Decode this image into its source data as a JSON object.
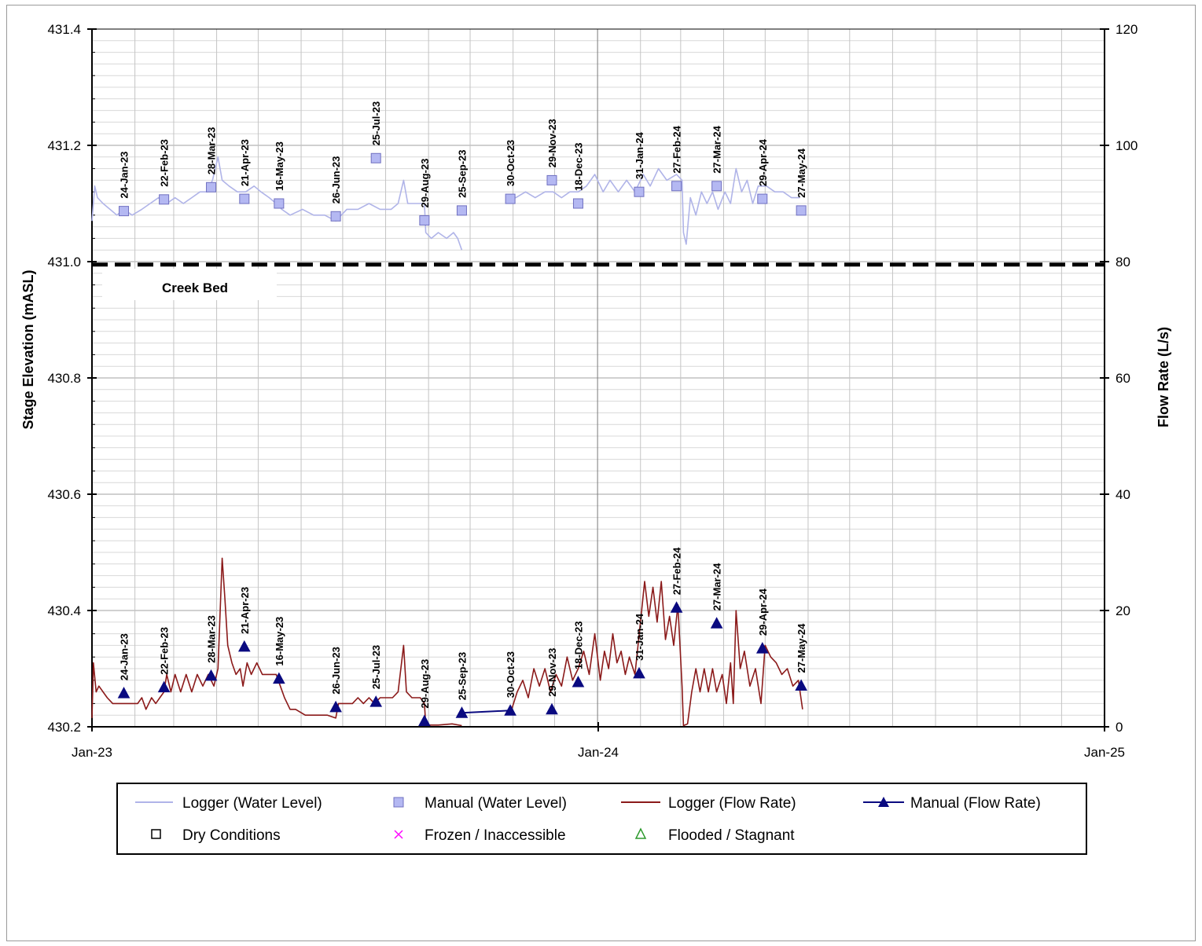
{
  "chart_data": {
    "type": "line",
    "ylabel_left": "Stage Elevation (mASL)",
    "ylabel_right": "Flow Rate (L/s)",
    "x_tick_labels": [
      "Jan-23",
      "Jan-24",
      "Jan-25"
    ],
    "xlim": [
      "2023-01-01",
      "2025-01-01"
    ],
    "ylim_left": [
      430.2,
      431.4
    ],
    "ylim_right": [
      0,
      120
    ],
    "y_left_ticks": [
      "430.2",
      "430.4",
      "430.6",
      "430.8",
      "431.0",
      "431.2",
      "431.4"
    ],
    "y_right_ticks": [
      "0",
      "20",
      "40",
      "60",
      "80",
      "100",
      "120"
    ],
    "creek_bed": {
      "label": "Creek Bed",
      "elevation": 430.995
    },
    "grid": true,
    "legend_position": "bottom",
    "legend": [
      {
        "label": "Logger (Water Level)",
        "key": "logger_wl"
      },
      {
        "label": "Manual (Water Level)",
        "key": "manual_wl"
      },
      {
        "label": "Logger (Flow  Rate)",
        "key": "logger_flow"
      },
      {
        "label": "Manual (Flow  Rate)",
        "key": "manual_flow"
      },
      {
        "label": "Dry Conditions",
        "key": "dry"
      },
      {
        "label": "Frozen / Inaccessible",
        "key": "frozen"
      },
      {
        "label": "Flooded / Stagnant",
        "key": "flooded"
      }
    ],
    "colors": {
      "logger_wl": "#b0b4e8",
      "manual_wl": "#b4b8f2",
      "manual_wl_edge": "#7070c0",
      "logger_flow": "#8b1a1a",
      "manual_flow": "#0a0a80",
      "frozen": "#ff00ff",
      "flooded": "#2e9a2e"
    },
    "manual_water_level": [
      {
        "date": "2023-01-24",
        "label": "24-Jan-23",
        "value": 431.087
      },
      {
        "date": "2023-02-22",
        "label": "22-Feb-23",
        "value": 431.107
      },
      {
        "date": "2023-03-28",
        "label": "28-Mar-23",
        "value": 431.128
      },
      {
        "date": "2023-04-21",
        "label": "21-Apr-23",
        "value": 431.108
      },
      {
        "date": "2023-05-16",
        "label": "16-May-23",
        "value": 431.1
      },
      {
        "date": "2023-06-26",
        "label": "26-Jun-23",
        "value": 431.078
      },
      {
        "date": "2023-07-25",
        "label": "25-Jul-23",
        "value": 431.178
      },
      {
        "date": "2023-08-29",
        "label": "29-Aug-23",
        "value": 431.071
      },
      {
        "date": "2023-09-25",
        "label": "25-Sep-23",
        "value": 431.088
      },
      {
        "date": "2023-10-30",
        "label": "30-Oct-23",
        "value": 431.108
      },
      {
        "date": "2023-11-29",
        "label": "29-Nov-23",
        "value": 431.14
      },
      {
        "date": "2023-12-18",
        "label": "18-Dec-23",
        "value": 431.1
      },
      {
        "date": "2024-01-31",
        "label": "31-Jan-24",
        "value": 431.12
      },
      {
        "date": "2024-02-27",
        "label": "27-Feb-24",
        "value": 431.13
      },
      {
        "date": "2024-03-27",
        "label": "27-Mar-24",
        "value": 431.13
      },
      {
        "date": "2024-04-29",
        "label": "29-Apr-24",
        "value": 431.108
      },
      {
        "date": "2024-05-27",
        "label": "27-May-24",
        "value": 431.088
      }
    ],
    "manual_flow_rate": [
      {
        "date": "2023-01-24",
        "label": "24-Jan-23",
        "value": 5.8
      },
      {
        "date": "2023-02-22",
        "label": "22-Feb-23",
        "value": 6.8
      },
      {
        "date": "2023-03-28",
        "label": "28-Mar-23",
        "value": 8.8
      },
      {
        "date": "2023-04-21",
        "label": "21-Apr-23",
        "value": 13.8
      },
      {
        "date": "2023-05-16",
        "label": "16-May-23",
        "value": 8.3
      },
      {
        "date": "2023-06-26",
        "label": "26-Jun-23",
        "value": 3.4
      },
      {
        "date": "2023-07-25",
        "label": "25-Jul-23",
        "value": 4.3
      },
      {
        "date": "2023-08-29",
        "label": "29-Aug-23",
        "value": 1.0
      },
      {
        "date": "2023-09-25",
        "label": "25-Sep-23",
        "value": 2.4
      },
      {
        "date": "2023-10-30",
        "label": "30-Oct-23",
        "value": 2.8
      },
      {
        "date": "2023-11-29",
        "label": "29-Nov-23",
        "value": 3.0
      },
      {
        "date": "2023-12-18",
        "label": "18-Dec-23",
        "value": 7.7
      },
      {
        "date": "2024-01-31",
        "label": "31-Jan-24",
        "value": 9.2
      },
      {
        "date": "2024-02-27",
        "label": "27-Feb-24",
        "value": 20.5
      },
      {
        "date": "2024-03-27",
        "label": "27-Mar-24",
        "value": 17.8
      },
      {
        "date": "2024-04-29",
        "label": "29-Apr-24",
        "value": 13.5
      },
      {
        "date": "2024-05-27",
        "label": "27-May-24",
        "value": 7.1
      }
    ],
    "manual_flow_line_segment": [
      "2023-09-25",
      "2023-10-30"
    ],
    "logger_water_level": [
      [
        "2023-01-01",
        431.07
      ],
      [
        "2023-01-03",
        431.13
      ],
      [
        "2023-01-05",
        431.11
      ],
      [
        "2023-01-09",
        431.1
      ],
      [
        "2023-01-14",
        431.09
      ],
      [
        "2023-01-19",
        431.08
      ],
      [
        "2023-01-24",
        431.09
      ],
      [
        "2023-01-30",
        431.08
      ],
      [
        "2023-02-06",
        431.09
      ],
      [
        "2023-02-12",
        431.1
      ],
      [
        "2023-02-18",
        431.11
      ],
      [
        "2023-02-24",
        431.1
      ],
      [
        "2023-03-02",
        431.11
      ],
      [
        "2023-03-08",
        431.1
      ],
      [
        "2023-03-14",
        431.11
      ],
      [
        "2023-03-20",
        431.12
      ],
      [
        "2023-03-25",
        431.12
      ],
      [
        "2023-03-29",
        431.14
      ],
      [
        "2023-04-02",
        431.18
      ],
      [
        "2023-04-05",
        431.14
      ],
      [
        "2023-04-10",
        431.13
      ],
      [
        "2023-04-16",
        431.12
      ],
      [
        "2023-04-22",
        431.12
      ],
      [
        "2023-04-28",
        431.13
      ],
      [
        "2023-05-03",
        431.12
      ],
      [
        "2023-05-09",
        431.11
      ],
      [
        "2023-05-14",
        431.1
      ],
      [
        "2023-05-18",
        431.09
      ],
      [
        "2023-05-24",
        431.08
      ],
      [
        "2023-06-02",
        431.09
      ],
      [
        "2023-06-10",
        431.08
      ],
      [
        "2023-06-18",
        431.08
      ],
      [
        "2023-06-26",
        431.07
      ],
      [
        "2023-07-04",
        431.09
      ],
      [
        "2023-07-12",
        431.09
      ],
      [
        "2023-07-20",
        431.1
      ],
      [
        "2023-07-28",
        431.09
      ],
      [
        "2023-08-05",
        431.09
      ],
      [
        "2023-08-10",
        431.1
      ],
      [
        "2023-08-14",
        431.14
      ],
      [
        "2023-08-17",
        431.1
      ],
      [
        "2023-08-23",
        431.1
      ],
      [
        "2023-08-29",
        431.1
      ],
      [
        "2023-08-30",
        431.05
      ],
      [
        "2023-09-03",
        431.04
      ],
      [
        "2023-09-08",
        431.05
      ],
      [
        "2023-09-14",
        431.04
      ],
      [
        "2023-09-19",
        431.05
      ],
      [
        "2023-09-22",
        431.04
      ],
      [
        "2023-09-25",
        431.02
      ]
    ],
    "logger_water_level_2": [
      [
        "2023-10-28",
        431.11
      ],
      [
        "2023-11-03",
        431.11
      ],
      [
        "2023-11-10",
        431.12
      ],
      [
        "2023-11-17",
        431.11
      ],
      [
        "2023-11-24",
        431.12
      ],
      [
        "2023-11-30",
        431.12
      ],
      [
        "2023-12-06",
        431.11
      ],
      [
        "2023-12-12",
        431.12
      ],
      [
        "2023-12-18",
        431.12
      ],
      [
        "2023-12-24",
        431.13
      ],
      [
        "2023-12-30",
        431.15
      ],
      [
        "2024-01-05",
        431.12
      ],
      [
        "2024-01-10",
        431.14
      ],
      [
        "2024-01-16",
        431.12
      ],
      [
        "2024-01-22",
        431.14
      ],
      [
        "2024-01-28",
        431.12
      ],
      [
        "2024-02-03",
        431.15
      ],
      [
        "2024-02-08",
        431.13
      ],
      [
        "2024-02-14",
        431.16
      ],
      [
        "2024-02-20",
        431.14
      ],
      [
        "2024-02-27",
        431.15
      ],
      [
        "2024-03-02",
        431.14
      ],
      [
        "2024-03-03",
        431.05
      ],
      [
        "2024-03-05",
        431.03
      ],
      [
        "2024-03-08",
        431.11
      ],
      [
        "2024-03-12",
        431.08
      ],
      [
        "2024-03-16",
        431.12
      ],
      [
        "2024-03-20",
        431.1
      ],
      [
        "2024-03-24",
        431.12
      ],
      [
        "2024-03-28",
        431.09
      ],
      [
        "2024-04-02",
        431.12
      ],
      [
        "2024-04-06",
        431.1
      ],
      [
        "2024-04-10",
        431.16
      ],
      [
        "2024-04-14",
        431.12
      ],
      [
        "2024-04-18",
        431.14
      ],
      [
        "2024-04-22",
        431.1
      ],
      [
        "2024-04-26",
        431.13
      ],
      [
        "2024-05-02",
        431.13
      ],
      [
        "2024-05-08",
        431.12
      ],
      [
        "2024-05-14",
        431.12
      ],
      [
        "2024-05-20",
        431.11
      ],
      [
        "2024-05-26",
        431.11
      ]
    ],
    "logger_flow_rate": [
      [
        "2023-01-01",
        1.5
      ],
      [
        "2023-01-02",
        11
      ],
      [
        "2023-01-04",
        6
      ],
      [
        "2023-01-06",
        7
      ],
      [
        "2023-01-09",
        6
      ],
      [
        "2023-01-12",
        5
      ],
      [
        "2023-01-16",
        4
      ],
      [
        "2023-01-22",
        4
      ],
      [
        "2023-01-28",
        4
      ],
      [
        "2023-02-03",
        4
      ],
      [
        "2023-02-06",
        5
      ],
      [
        "2023-02-09",
        3
      ],
      [
        "2023-02-13",
        5
      ],
      [
        "2023-02-16",
        4
      ],
      [
        "2023-02-19",
        5
      ],
      [
        "2023-02-22",
        6
      ],
      [
        "2023-02-24",
        9
      ],
      [
        "2023-02-27",
        6
      ],
      [
        "2023-03-02",
        9
      ],
      [
        "2023-03-06",
        6
      ],
      [
        "2023-03-10",
        9
      ],
      [
        "2023-03-14",
        6
      ],
      [
        "2023-03-18",
        9
      ],
      [
        "2023-03-22",
        7
      ],
      [
        "2023-03-26",
        9
      ],
      [
        "2023-03-30",
        7
      ],
      [
        "2023-04-02",
        10
      ],
      [
        "2023-04-05",
        29
      ],
      [
        "2023-04-07",
        22
      ],
      [
        "2023-04-09",
        14
      ],
      [
        "2023-04-12",
        11
      ],
      [
        "2023-04-15",
        9
      ],
      [
        "2023-04-18",
        10
      ],
      [
        "2023-04-20",
        7
      ],
      [
        "2023-04-23",
        11
      ],
      [
        "2023-04-26",
        9
      ],
      [
        "2023-04-30",
        11
      ],
      [
        "2023-05-04",
        9
      ],
      [
        "2023-05-09",
        9
      ],
      [
        "2023-05-14",
        9
      ],
      [
        "2023-05-17",
        7
      ],
      [
        "2023-05-20",
        5
      ],
      [
        "2023-05-24",
        3
      ],
      [
        "2023-05-28",
        3
      ],
      [
        "2023-06-04",
        2
      ],
      [
        "2023-06-12",
        2
      ],
      [
        "2023-06-20",
        2
      ],
      [
        "2023-06-26",
        1.5
      ],
      [
        "2023-06-28",
        4
      ],
      [
        "2023-07-03",
        4
      ],
      [
        "2023-07-08",
        4
      ],
      [
        "2023-07-12",
        5
      ],
      [
        "2023-07-16",
        4
      ],
      [
        "2023-07-20",
        5
      ],
      [
        "2023-07-24",
        4
      ],
      [
        "2023-07-28",
        5
      ],
      [
        "2023-08-02",
        5
      ],
      [
        "2023-08-06",
        5
      ],
      [
        "2023-08-10",
        6
      ],
      [
        "2023-08-14",
        14
      ],
      [
        "2023-08-16",
        6
      ],
      [
        "2023-08-20",
        5
      ],
      [
        "2023-08-26",
        5
      ],
      [
        "2023-08-29",
        4
      ],
      [
        "2023-08-30",
        0.3
      ],
      [
        "2023-09-08",
        0.3
      ],
      [
        "2023-09-18",
        0.5
      ],
      [
        "2023-09-25",
        0.2
      ]
    ],
    "logger_flow_rate_2": [
      [
        "2023-10-31",
        3
      ],
      [
        "2023-11-04",
        6
      ],
      [
        "2023-11-08",
        8
      ],
      [
        "2023-11-12",
        5
      ],
      [
        "2023-11-16",
        10
      ],
      [
        "2023-11-20",
        7
      ],
      [
        "2023-11-24",
        10
      ],
      [
        "2023-11-28",
        6
      ],
      [
        "2023-12-02",
        9
      ],
      [
        "2023-12-06",
        7
      ],
      [
        "2023-12-10",
        12
      ],
      [
        "2023-12-14",
        8
      ],
      [
        "2023-12-18",
        10
      ],
      [
        "2023-12-22",
        13
      ],
      [
        "2023-12-26",
        9
      ],
      [
        "2023-12-30",
        16
      ],
      [
        "2024-01-03",
        8
      ],
      [
        "2024-01-06",
        13
      ],
      [
        "2024-01-09",
        10
      ],
      [
        "2024-01-12",
        16
      ],
      [
        "2024-01-15",
        11
      ],
      [
        "2024-01-18",
        13
      ],
      [
        "2024-01-21",
        9
      ],
      [
        "2024-01-24",
        12
      ],
      [
        "2024-01-28",
        9
      ],
      [
        "2024-02-01",
        18
      ],
      [
        "2024-02-04",
        25
      ],
      [
        "2024-02-07",
        19
      ],
      [
        "2024-02-10",
        24
      ],
      [
        "2024-02-13",
        18
      ],
      [
        "2024-02-16",
        25
      ],
      [
        "2024-02-19",
        15
      ],
      [
        "2024-02-22",
        19
      ],
      [
        "2024-02-25",
        14
      ],
      [
        "2024-02-28",
        21
      ],
      [
        "2024-03-02",
        7
      ],
      [
        "2024-03-03",
        0.2
      ],
      [
        "2024-03-06",
        0.5
      ],
      [
        "2024-03-09",
        6
      ],
      [
        "2024-03-12",
        10
      ],
      [
        "2024-03-15",
        6
      ],
      [
        "2024-03-18",
        10
      ],
      [
        "2024-03-21",
        6
      ],
      [
        "2024-03-24",
        10
      ],
      [
        "2024-03-27",
        6
      ],
      [
        "2024-03-31",
        9
      ],
      [
        "2024-04-03",
        4
      ],
      [
        "2024-04-06",
        11
      ],
      [
        "2024-04-08",
        4
      ],
      [
        "2024-04-10",
        20
      ],
      [
        "2024-04-13",
        10
      ],
      [
        "2024-04-16",
        13
      ],
      [
        "2024-04-20",
        7
      ],
      [
        "2024-04-24",
        10
      ],
      [
        "2024-04-28",
        4
      ],
      [
        "2024-05-01",
        14
      ],
      [
        "2024-05-05",
        12
      ],
      [
        "2024-05-09",
        11
      ],
      [
        "2024-05-13",
        9
      ],
      [
        "2024-05-17",
        10
      ],
      [
        "2024-05-21",
        7
      ],
      [
        "2024-05-25",
        8
      ],
      [
        "2024-05-28",
        3
      ]
    ]
  }
}
